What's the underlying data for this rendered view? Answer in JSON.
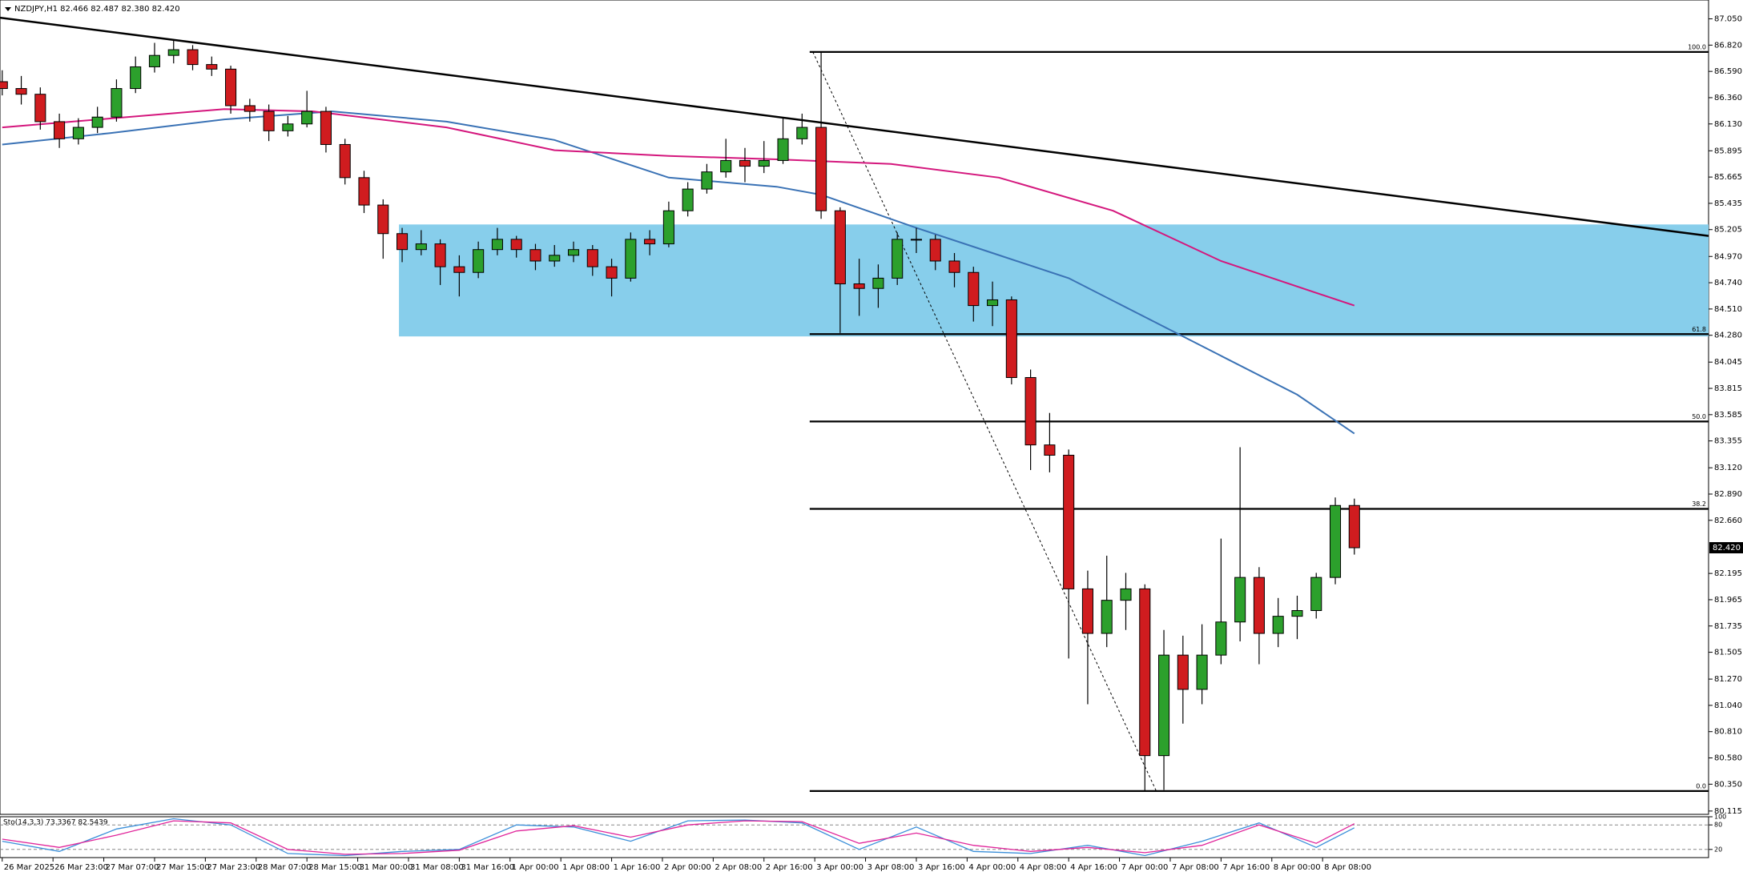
{
  "chart_data": {
    "type": "candlestick",
    "title": "NZDJPY,H1  82.466 82.487 82.380 82.420",
    "xlim": [
      -0.35,
      268.8
    ],
    "ylim": [
      80.086,
      87.215
    ],
    "xticks": [
      {
        "value": 0,
        "label": "26 Mar 2025"
      },
      {
        "value": 8,
        "label": "26 Mar 23:00"
      },
      {
        "value": 16,
        "label": "27 Mar 07:00"
      },
      {
        "value": 24,
        "label": "27 Mar 15:00"
      },
      {
        "value": 32,
        "label": "27 Mar 23:00"
      },
      {
        "value": 40,
        "label": "28 Mar 07:00"
      },
      {
        "value": 48,
        "label": "28 Mar 15:00"
      },
      {
        "value": 56,
        "label": "31 Mar 00:00"
      },
      {
        "value": 64,
        "label": "31 Mar 08:00"
      },
      {
        "value": 72,
        "label": "31 Mar 16:00"
      },
      {
        "value": 80,
        "label": "1 Apr 00:00"
      },
      {
        "value": 88,
        "label": "1 Apr 08:00"
      },
      {
        "value": 96,
        "label": "1 Apr 16:00"
      },
      {
        "value": 104,
        "label": "2 Apr 00:00"
      },
      {
        "value": 112,
        "label": "2 Apr 08:00"
      },
      {
        "value": 120,
        "label": "2 Apr 16:00"
      },
      {
        "value": 128,
        "label": "3 Apr 00:00"
      },
      {
        "value": 136,
        "label": "3 Apr 08:00"
      },
      {
        "value": 144,
        "label": "3 Apr 16:00"
      },
      {
        "value": 152,
        "label": "4 Apr 00:00"
      },
      {
        "value": 160,
        "label": "4 Apr 08:00"
      },
      {
        "value": 168,
        "label": "4 Apr 16:00"
      },
      {
        "value": 176,
        "label": "7 Apr 00:00"
      },
      {
        "value": 184,
        "label": "7 Apr 08:00"
      },
      {
        "value": 192,
        "label": "7 Apr 16:00"
      },
      {
        "value": 200,
        "label": "8 Apr 00:00"
      },
      {
        "value": 208,
        "label": "8 Apr 08:00"
      }
    ],
    "yticks": [
      {
        "value": 87.05,
        "label": "87.050"
      },
      {
        "value": 86.82,
        "label": "86.820"
      },
      {
        "value": 86.59,
        "label": "86.590"
      },
      {
        "value": 86.36,
        "label": "86.360"
      },
      {
        "value": 86.13,
        "label": "86.130"
      },
      {
        "value": 85.895,
        "label": "85.895"
      },
      {
        "value": 85.665,
        "label": "85.665"
      },
      {
        "value": 85.435,
        "label": "85.435"
      },
      {
        "value": 85.205,
        "label": "85.205"
      },
      {
        "value": 84.97,
        "label": "84.970"
      },
      {
        "value": 84.74,
        "label": "84.740"
      },
      {
        "value": 84.51,
        "label": "84.510"
      },
      {
        "value": 84.28,
        "label": "84.280"
      },
      {
        "value": 84.045,
        "label": "84.045"
      },
      {
        "value": 83.815,
        "label": "83.815"
      },
      {
        "value": 83.585,
        "label": "83.585"
      },
      {
        "value": 83.355,
        "label": "83.355"
      },
      {
        "value": 83.12,
        "label": "83.120"
      },
      {
        "value": 82.89,
        "label": "82.890"
      },
      {
        "value": 82.66,
        "label": "82.660"
      },
      {
        "value": 82.195,
        "label": "82.195"
      },
      {
        "value": 81.965,
        "label": "81.965"
      },
      {
        "value": 81.735,
        "label": "81.735"
      },
      {
        "value": 81.505,
        "label": "81.505"
      },
      {
        "value": 81.27,
        "label": "81.270"
      },
      {
        "value": 81.04,
        "label": "81.040"
      },
      {
        "value": 80.81,
        "label": "80.810"
      },
      {
        "value": 80.58,
        "label": "80.580"
      },
      {
        "value": 80.35,
        "label": "80.350"
      },
      {
        "value": 80.115,
        "label": "80.115"
      }
    ],
    "last_price": {
      "value": 82.42,
      "label": "82.420"
    },
    "bull_color": "#2ca02c",
    "bear_color": "#d01c1f",
    "candles": {
      "x": [
        0,
        3,
        6,
        9,
        12,
        15,
        18,
        21,
        24,
        27,
        30,
        33,
        36,
        39,
        42,
        45,
        48,
        51,
        54,
        57,
        60,
        63,
        66,
        69,
        72,
        75,
        78,
        81,
        84,
        87,
        90,
        93,
        96,
        99,
        102,
        105,
        108,
        111,
        114,
        117,
        120,
        123,
        126,
        129,
        132,
        135,
        138,
        141,
        144,
        147,
        150,
        153,
        156,
        159,
        162,
        165,
        168,
        171,
        174,
        177,
        180,
        183,
        186,
        189,
        192,
        195,
        198,
        201,
        204,
        207,
        210,
        213
      ],
      "ohlc": [
        [
          86.5,
          86.6,
          86.38,
          86.44
        ],
        [
          86.44,
          86.55,
          86.3,
          86.39
        ],
        [
          86.39,
          86.45,
          86.08,
          86.15
        ],
        [
          86.15,
          86.22,
          85.92,
          86.0
        ],
        [
          86.0,
          86.18,
          85.95,
          86.1
        ],
        [
          86.1,
          86.28,
          86.05,
          86.19
        ],
        [
          86.19,
          86.52,
          86.15,
          86.44
        ],
        [
          86.44,
          86.72,
          86.4,
          86.63
        ],
        [
          86.63,
          86.84,
          86.58,
          86.73
        ],
        [
          86.73,
          86.86,
          86.66,
          86.78
        ],
        [
          86.78,
          86.82,
          86.6,
          86.65
        ],
        [
          86.65,
          86.72,
          86.55,
          86.61
        ],
        [
          86.61,
          86.64,
          86.22,
          86.29
        ],
        [
          86.29,
          86.35,
          86.15,
          86.24
        ],
        [
          86.24,
          86.3,
          85.98,
          86.07
        ],
        [
          86.07,
          86.2,
          86.02,
          86.13
        ],
        [
          86.13,
          86.42,
          86.1,
          86.24
        ],
        [
          86.24,
          86.28,
          85.88,
          85.95
        ],
        [
          85.95,
          86.0,
          85.6,
          85.66
        ],
        [
          85.66,
          85.72,
          85.35,
          85.42
        ],
        [
          85.42,
          85.47,
          84.95,
          85.17
        ],
        [
          85.17,
          85.22,
          84.92,
          85.03
        ],
        [
          85.03,
          85.2,
          84.98,
          85.08
        ],
        [
          85.08,
          85.12,
          84.72,
          84.88
        ],
        [
          84.88,
          84.98,
          84.62,
          84.83
        ],
        [
          84.83,
          85.1,
          84.78,
          85.03
        ],
        [
          85.03,
          85.22,
          84.98,
          85.12
        ],
        [
          85.12,
          85.15,
          84.96,
          85.03
        ],
        [
          85.03,
          85.08,
          84.85,
          84.93
        ],
        [
          84.93,
          85.07,
          84.88,
          84.98
        ],
        [
          84.98,
          85.1,
          84.92,
          85.03
        ],
        [
          85.03,
          85.07,
          84.8,
          84.88
        ],
        [
          84.88,
          84.95,
          84.62,
          84.78
        ],
        [
          84.78,
          85.18,
          84.75,
          85.12
        ],
        [
          85.12,
          85.2,
          84.98,
          85.08
        ],
        [
          85.08,
          85.45,
          85.05,
          85.37
        ],
        [
          85.37,
          85.62,
          85.32,
          85.56
        ],
        [
          85.56,
          85.78,
          85.52,
          85.71
        ],
        [
          85.71,
          86.0,
          85.66,
          85.81
        ],
        [
          85.81,
          85.92,
          85.62,
          85.76
        ],
        [
          85.76,
          85.98,
          85.7,
          85.81
        ],
        [
          85.81,
          86.18,
          85.78,
          86.0
        ],
        [
          86.0,
          86.22,
          85.95,
          86.1
        ],
        [
          86.1,
          86.76,
          85.3,
          85.37
        ],
        [
          85.37,
          85.4,
          84.3,
          84.73
        ],
        [
          84.73,
          84.95,
          84.45,
          84.69
        ],
        [
          84.69,
          84.9,
          84.52,
          84.78
        ],
        [
          84.78,
          85.18,
          84.72,
          85.12
        ],
        [
          85.12,
          85.22,
          85.0,
          85.12
        ],
        [
          85.12,
          85.16,
          84.85,
          84.93
        ],
        [
          84.93,
          85.0,
          84.7,
          84.83
        ],
        [
          84.83,
          84.88,
          84.4,
          84.54
        ],
        [
          84.54,
          84.75,
          84.36,
          84.59
        ],
        [
          84.59,
          84.62,
          83.85,
          83.91
        ],
        [
          83.91,
          83.98,
          83.1,
          83.32
        ],
        [
          83.32,
          83.6,
          83.08,
          83.23
        ],
        [
          83.23,
          83.28,
          81.45,
          82.06
        ],
        [
          82.06,
          82.22,
          81.05,
          81.67
        ],
        [
          81.67,
          82.35,
          81.55,
          81.96
        ],
        [
          81.96,
          82.2,
          81.7,
          82.06
        ],
        [
          82.06,
          82.1,
          80.29,
          80.6
        ],
        [
          80.6,
          81.7,
          80.3,
          81.48
        ],
        [
          81.48,
          81.65,
          80.88,
          81.18
        ],
        [
          81.18,
          81.75,
          81.05,
          81.48
        ],
        [
          81.48,
          82.5,
          81.4,
          81.77
        ],
        [
          81.77,
          83.3,
          81.6,
          82.16
        ],
        [
          82.16,
          82.25,
          81.4,
          81.67
        ],
        [
          81.67,
          81.98,
          81.55,
          81.82
        ],
        [
          81.82,
          82.0,
          81.62,
          81.87
        ],
        [
          81.87,
          82.2,
          81.8,
          82.16
        ],
        [
          82.16,
          82.86,
          82.1,
          82.79
        ],
        [
          82.79,
          82.85,
          82.36,
          82.42
        ]
      ]
    },
    "moving_averages": [
      {
        "color": "#3a72b5",
        "x": [
          0,
          17,
          35,
          52,
          70,
          87,
          105,
          122,
          129,
          144,
          156,
          168,
          180,
          192,
          204,
          213
        ],
        "values": [
          85.95,
          86.05,
          86.17,
          86.24,
          86.15,
          85.99,
          85.66,
          85.58,
          85.51,
          85.22,
          85.0,
          84.78,
          84.44,
          84.1,
          83.76,
          83.42
        ]
      },
      {
        "color": "#d4177d",
        "x": [
          0,
          35,
          49,
          70,
          87,
          105,
          122,
          140,
          157,
          175,
          192,
          213
        ],
        "values": [
          86.1,
          86.26,
          86.24,
          86.1,
          85.9,
          85.85,
          85.82,
          85.78,
          85.66,
          85.37,
          84.93,
          84.54
        ]
      }
    ],
    "zone": {
      "color": "#87ceeb",
      "x": [
        62.5,
        268.8
      ],
      "y": [
        84.27,
        85.25
      ]
    },
    "trendline": {
      "x": [
        -0.35,
        268.8
      ],
      "y": [
        87.06,
        85.15
      ]
    },
    "fib_x": [
      127.2,
      268.8
    ],
    "fib_levels": [
      {
        "label": "100.0",
        "price": 86.76
      },
      {
        "label": "61.8",
        "price": 84.29
      },
      {
        "label": "50.0",
        "price": 83.525
      },
      {
        "label": "38.2",
        "price": 82.76
      },
      {
        "label": "0.0",
        "price": 80.29
      }
    ],
    "fib_diagonal": {
      "x": [
        127.7,
        181.8
      ],
      "y": [
        86.76,
        80.29
      ]
    },
    "oscillator": {
      "title": "Sto(14,3,3) 73.3367 82.5439",
      "ylim": [
        0,
        100
      ],
      "yticks": [
        100,
        80,
        20
      ],
      "levels": [
        80,
        20
      ],
      "x": [
        0,
        9,
        18,
        27,
        36,
        45,
        54,
        63,
        72,
        81,
        90,
        99,
        108,
        117,
        126,
        135,
        144,
        153,
        162,
        171,
        180,
        189,
        198,
        207,
        213
      ],
      "series": [
        {
          "color": "#3b8fd9",
          "values": [
            40,
            15,
            70,
            95,
            80,
            10,
            5,
            15,
            20,
            80,
            75,
            40,
            90,
            92,
            85,
            20,
            75,
            15,
            10,
            30,
            5,
            40,
            85,
            25,
            73
          ]
        },
        {
          "color": "#e0249a",
          "values": [
            45,
            25,
            55,
            90,
            85,
            20,
            8,
            10,
            18,
            65,
            78,
            50,
            80,
            90,
            88,
            35,
            60,
            30,
            15,
            25,
            12,
            30,
            80,
            35,
            83
          ]
        }
      ]
    }
  }
}
